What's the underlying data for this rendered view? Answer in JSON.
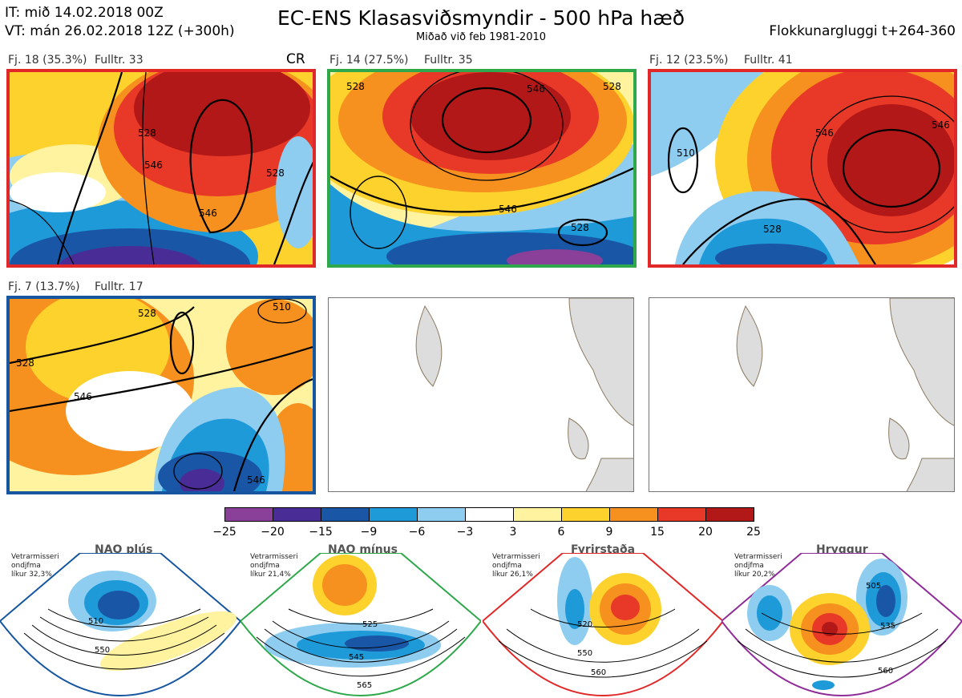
{
  "header": {
    "it": "IT: mið 14.02.2018 00Z",
    "vt": "VT: mán 26.02.2018 12Z  (+300h)",
    "title": "EC-ENS Klasasviðsmyndir - 500 hPa hæð",
    "subtitle": "Miðað við feb 1981-2010",
    "window": "Flokkunargluggi t+264-360"
  },
  "panels": [
    {
      "label": "Fj. 18 (35.3%)",
      "members": "Fulltr. 33",
      "tag": "CR",
      "border": "#e02828",
      "contours": [
        "546",
        "528",
        "528",
        "546"
      ]
    },
    {
      "label": "Fj. 14 (27.5%)",
      "members": "Fulltr. 35",
      "tag": "",
      "border": "#2ea84a",
      "contours": [
        "546",
        "528",
        "546",
        "528",
        "528"
      ]
    },
    {
      "label": "Fj. 12 (23.5%)",
      "members": "Fulltr. 41",
      "tag": "",
      "border": "#e02828",
      "contours": [
        "546",
        "528",
        "510",
        "546"
      ]
    },
    {
      "label": "Fj. 7 (13.7%)",
      "members": "Fulltr. 17",
      "tag": "",
      "border": "#1656a0",
      "contours": [
        "528",
        "546",
        "528",
        "510",
        "546"
      ]
    }
  ],
  "colorbar": {
    "colors": [
      "#8a3f98",
      "#4a2c96",
      "#1a56a6",
      "#1e9ad8",
      "#8ecdf0",
      "#ffffff",
      "#fff3a0",
      "#fdd22c",
      "#f6901e",
      "#e83828",
      "#b21818"
    ],
    "ticks": [
      "−25",
      "−20",
      "−15",
      "−9",
      "−6",
      "−3",
      "3",
      "6",
      "9",
      "15",
      "20",
      "25"
    ]
  },
  "regimes": [
    {
      "name": "NAO plús",
      "season": "Vetrarmisseri",
      "note": "ondjfma",
      "prob": "líkur 32,3%",
      "color": "#1656a0",
      "contours": [
        "510",
        "550"
      ]
    },
    {
      "name": "NAO mínus",
      "season": "Vetrarmisseri",
      "note": "ondjfma",
      "prob": "líkur 21,4%",
      "color": "#2ea84a",
      "contours": [
        "525",
        "545",
        "565"
      ]
    },
    {
      "name": "Fyrirstaða",
      "season": "Vetrarmisseri",
      "note": "ondjfma",
      "prob": "líkur 26,1%",
      "color": "#e02828",
      "contours": [
        "520",
        "550",
        "560"
      ]
    },
    {
      "name": "Hryggur",
      "season": "Vetrarmisseri",
      "note": "ondjfma",
      "prob": "líkur 20,2%",
      "color": "#e078e8",
      "contours": [
        "505",
        "535",
        "560"
      ]
    }
  ],
  "chart_data": {
    "type": "heatmap",
    "title": "EC-ENS Klasasviðsmyndir - 500 hPa hæð",
    "variable": "500 hPa height anomaly",
    "clusters": [
      {
        "cluster": "Fj. 18",
        "share_pct": 35.3,
        "representative_member": 33
      },
      {
        "cluster": "Fj. 14",
        "share_pct": 27.5,
        "representative_member": 35
      },
      {
        "cluster": "Fj. 12",
        "share_pct": 23.5,
        "representative_member": 41
      },
      {
        "cluster": "Fj. 7",
        "share_pct": 13.7,
        "representative_member": 17
      }
    ],
    "regimes": [
      {
        "regime": "NAO plús",
        "climatological_probability_pct": 32.3
      },
      {
        "regime": "NAO mínus",
        "climatological_probability_pct": 21.4
      },
      {
        "regime": "Fyrirstaða",
        "climatological_probability_pct": 26.1
      },
      {
        "regime": "Hryggur",
        "climatological_probability_pct": 20.2
      }
    ],
    "colorbar_levels": [
      -25,
      -20,
      -15,
      -9,
      -6,
      -3,
      3,
      6,
      9,
      15,
      20,
      25
    ]
  }
}
